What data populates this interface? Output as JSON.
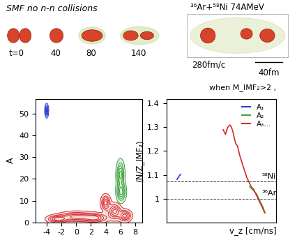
{
  "snapshots": {
    "title": "SMF no n-n collisions",
    "reaction": "³⁶Ar+⁵⁸Ni 74AMeV",
    "times": [
      "t=0",
      "40",
      "80",
      "140",
      "280fm/c"
    ],
    "scale": "40fm"
  },
  "chart_data": [
    {
      "type": "contour",
      "ylabel": "A",
      "xlim": [
        -5.5,
        9
      ],
      "ylim": [
        0,
        57
      ],
      "xticks": [
        -4,
        -2,
        0,
        2,
        4,
        6,
        8
      ],
      "yticks": [
        0,
        10,
        20,
        30,
        40,
        50
      ],
      "series": [
        {
          "color": "#2b3fd6",
          "blobs": [
            {
              "vz": -4.0,
              "A": 51.5,
              "svz": 0.13,
              "sA": 1.6
            }
          ]
        },
        {
          "color": "#3aa23a",
          "blobs": [
            {
              "vz": 6.0,
              "A": 22.0,
              "svz": 0.3,
              "sA": 3.5
            },
            {
              "vz": 6.1,
              "A": 14.0,
              "svz": 0.35,
              "sA": 2.5
            }
          ]
        },
        {
          "color": "#d42a2a",
          "blobs": [
            {
              "vz": 4.0,
              "A": 9.0,
              "svz": 0.35,
              "sA": 2.0
            },
            {
              "vz": 5.2,
              "A": 5.0,
              "svz": 0.5,
              "sA": 2.0
            },
            {
              "vz": 6.6,
              "A": 3.0,
              "svz": 0.5,
              "sA": 1.5
            },
            {
              "vz": 2.5,
              "A": 2.0,
              "svz": 1.0,
              "sA": 1.2
            },
            {
              "vz": 0.0,
              "A": 2.5,
              "svz": 1.3,
              "sA": 1.3
            },
            {
              "vz": -2.5,
              "A": 1.5,
              "svz": 0.8,
              "sA": 1.0
            }
          ]
        }
      ]
    },
    {
      "type": "line",
      "xlabel": "v_z [cm/ns]",
      "ylabel": "⟨N/Z_IMF₂⟩",
      "annotation": "when M_IMF₂>2 ,",
      "xlim": [
        -5.5,
        9
      ],
      "ylim": [
        0.9,
        1.42
      ],
      "yticks": [
        1,
        1.1,
        1.2,
        1.3,
        1.4
      ],
      "tick_labels": "y",
      "legend": "upper right",
      "reference_lines": [
        {
          "label": "⁵⁸Ni",
          "value": 1.0714
        },
        {
          "label": "³⁶Ar",
          "value": 1.0
        }
      ],
      "series": [
        {
          "name": "A₁",
          "color": "#2b3fd6",
          "x": [
            -4.1,
            -3.9,
            -3.7,
            -3.6
          ],
          "values": [
            1.08,
            1.09,
            1.1,
            1.1
          ]
        },
        {
          "name": "A₂",
          "color": "#3aa23a",
          "x": [
            5.5,
            5.8,
            6.1,
            6.4,
            6.7,
            7.0,
            7.3,
            7.5
          ],
          "values": [
            1.05,
            1.04,
            1.03,
            1.02,
            1.0,
            0.98,
            0.96,
            0.94
          ]
        },
        {
          "name": "A₃...",
          "color": "#d42a2a",
          "x": [
            2.0,
            2.3,
            2.6,
            2.9,
            3.1,
            3.3,
            3.5,
            3.7,
            3.9,
            4.2,
            4.5,
            4.8,
            5.1,
            5.4,
            5.7,
            6.0,
            6.3,
            6.6,
            6.9,
            7.2,
            7.5
          ],
          "values": [
            1.29,
            1.27,
            1.3,
            1.31,
            1.3,
            1.28,
            1.25,
            1.23,
            1.22,
            1.18,
            1.15,
            1.12,
            1.09,
            1.07,
            1.05,
            1.04,
            1.02,
            1.0,
            0.98,
            0.96,
            0.94
          ]
        }
      ]
    }
  ]
}
